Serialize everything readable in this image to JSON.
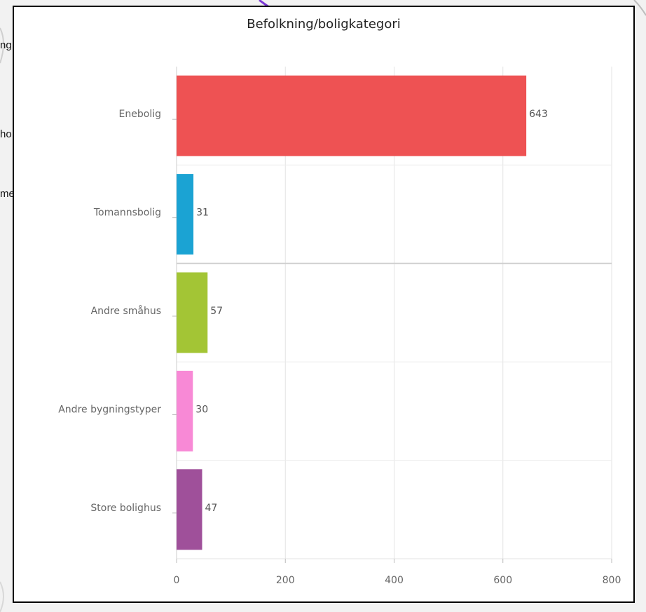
{
  "background": {
    "map_labels": [
      "ng",
      "ho",
      "me"
    ]
  },
  "chart_data": {
    "type": "bar",
    "orientation": "horizontal",
    "title": "Befolkning/boligkategori",
    "xlabel": "",
    "ylabel": "",
    "categories": [
      "Enebolig",
      "Tomannsbolig",
      "Andre småhus",
      "Andre bygningstyper",
      "Store bolighus"
    ],
    "values": [
      643,
      31,
      57,
      30,
      47
    ],
    "colors": [
      "#ee5253",
      "#1ba3d3",
      "#a3c535",
      "#f889d6",
      "#9f509a"
    ],
    "xlim": [
      0,
      800
    ],
    "xticks": [
      0,
      200,
      400,
      600,
      800
    ],
    "grid": true,
    "data_labels": true
  }
}
